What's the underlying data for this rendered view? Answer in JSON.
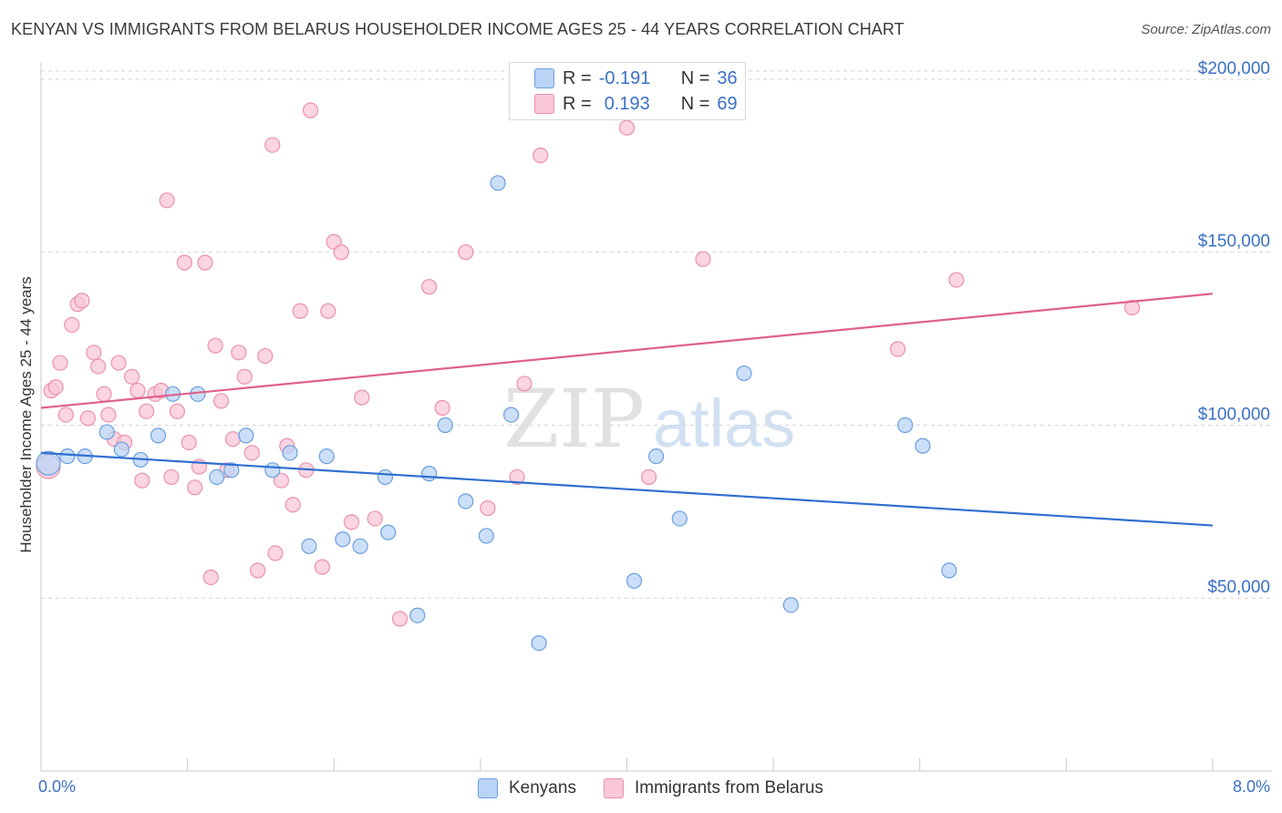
{
  "title": "KENYAN VS IMMIGRANTS FROM BELARUS HOUSEHOLDER INCOME AGES 25 - 44 YEARS CORRELATION CHART",
  "source": "Source: ZipAtlas.com",
  "watermark": {
    "zip": "ZIP",
    "atlas": "atlas"
  },
  "colors": {
    "blue_fill": "#b9d4f5",
    "blue_stroke": "#6a9ee0",
    "blue_line": "#2f6fd0",
    "pink_fill": "#f9c7d7",
    "pink_stroke": "#ec8fae",
    "pink_line": "#e0608e",
    "axis_text": "#3b70c6",
    "grid": "#d4d4d4"
  },
  "legend_top": [
    {
      "r_label": "R =",
      "r_value": "-0.191",
      "n_label": "N =",
      "n_value": "36"
    },
    {
      "r_label": "R =",
      "r_value": "0.193",
      "n_label": "N =",
      "n_value": "69"
    }
  ],
  "legend_bottom": [
    {
      "label": "Kenyans"
    },
    {
      "label": "Immigrants from Belarus"
    }
  ],
  "chart_data": {
    "type": "scatter",
    "ylabel": "Householder Income Ages 25 - 44 years",
    "xlim": [
      0,
      8.0
    ],
    "ylim": [
      0,
      205000
    ],
    "x_tick_labels": [
      {
        "value": 0,
        "label": "0.0%"
      },
      {
        "value": 8.0,
        "label": "8.0%"
      }
    ],
    "y_ticks": [
      {
        "value": 50000,
        "label": "$50,000"
      },
      {
        "value": 100000,
        "label": "$100,000"
      },
      {
        "value": 150000,
        "label": "$150,000"
      },
      {
        "value": 200000,
        "label": "$200,000"
      }
    ],
    "grid": true,
    "legend_position": "top-center",
    "series": [
      {
        "name": "Kenyans",
        "trend": [
          [
            0,
            92000
          ],
          [
            8.0,
            71000
          ]
        ],
        "points": [
          [
            0.05,
            89000
          ],
          [
            0.18,
            91000
          ],
          [
            0.3,
            91000
          ],
          [
            0.45,
            98000
          ],
          [
            0.55,
            93000
          ],
          [
            0.68,
            90000
          ],
          [
            0.8,
            97000
          ],
          [
            0.9,
            109000
          ],
          [
            1.07,
            109000
          ],
          [
            1.2,
            85000
          ],
          [
            1.3,
            87000
          ],
          [
            1.4,
            97000
          ],
          [
            1.58,
            87000
          ],
          [
            1.7,
            92000
          ],
          [
            1.83,
            65000
          ],
          [
            1.95,
            91000
          ],
          [
            2.06,
            67000
          ],
          [
            2.18,
            65000
          ],
          [
            2.35,
            85000
          ],
          [
            2.37,
            69000
          ],
          [
            2.57,
            45000
          ],
          [
            2.65,
            86000
          ],
          [
            2.76,
            100000
          ],
          [
            2.9,
            78000
          ],
          [
            3.04,
            68000
          ],
          [
            3.12,
            170000
          ],
          [
            3.21,
            103000
          ],
          [
            3.4,
            37000
          ],
          [
            4.05,
            55000
          ],
          [
            4.2,
            91000
          ],
          [
            4.36,
            73000
          ],
          [
            4.8,
            115000
          ],
          [
            5.12,
            48000
          ],
          [
            5.9,
            100000
          ],
          [
            6.02,
            94000
          ],
          [
            6.2,
            58000
          ]
        ]
      },
      {
        "name": "Immigrants from Belarus",
        "trend": [
          [
            0,
            105000
          ],
          [
            8.0,
            138000
          ]
        ],
        "points": [
          [
            0.05,
            88000
          ],
          [
            0.07,
            110000
          ],
          [
            0.1,
            111000
          ],
          [
            0.13,
            118000
          ],
          [
            0.17,
            103000
          ],
          [
            0.21,
            129000
          ],
          [
            0.25,
            135000
          ],
          [
            0.28,
            136000
          ],
          [
            0.32,
            102000
          ],
          [
            0.36,
            121000
          ],
          [
            0.39,
            117000
          ],
          [
            0.43,
            109000
          ],
          [
            0.46,
            103000
          ],
          [
            0.5,
            96000
          ],
          [
            0.53,
            118000
          ],
          [
            0.57,
            95000
          ],
          [
            0.62,
            114000
          ],
          [
            0.66,
            110000
          ],
          [
            0.69,
            84000
          ],
          [
            0.72,
            104000
          ],
          [
            0.78,
            109000
          ],
          [
            0.82,
            110000
          ],
          [
            0.86,
            165000
          ],
          [
            0.89,
            85000
          ],
          [
            0.93,
            104000
          ],
          [
            0.98,
            147000
          ],
          [
            1.01,
            95000
          ],
          [
            1.05,
            82000
          ],
          [
            1.08,
            88000
          ],
          [
            1.12,
            147000
          ],
          [
            1.16,
            56000
          ],
          [
            1.19,
            123000
          ],
          [
            1.23,
            107000
          ],
          [
            1.27,
            87000
          ],
          [
            1.31,
            96000
          ],
          [
            1.35,
            121000
          ],
          [
            1.39,
            114000
          ],
          [
            1.44,
            92000
          ],
          [
            1.48,
            58000
          ],
          [
            1.53,
            120000
          ],
          [
            1.58,
            181000
          ],
          [
            1.6,
            63000
          ],
          [
            1.64,
            84000
          ],
          [
            1.68,
            94000
          ],
          [
            1.72,
            77000
          ],
          [
            1.77,
            133000
          ],
          [
            1.81,
            87000
          ],
          [
            1.84,
            191000
          ],
          [
            1.92,
            59000
          ],
          [
            1.96,
            133000
          ],
          [
            2.0,
            153000
          ],
          [
            2.05,
            150000
          ],
          [
            2.12,
            72000
          ],
          [
            2.19,
            108000
          ],
          [
            2.28,
            73000
          ],
          [
            2.45,
            44000
          ],
          [
            2.65,
            140000
          ],
          [
            2.74,
            105000
          ],
          [
            2.9,
            150000
          ],
          [
            3.05,
            76000
          ],
          [
            3.25,
            85000
          ],
          [
            3.3,
            112000
          ],
          [
            3.41,
            178000
          ],
          [
            4.0,
            186000
          ],
          [
            4.15,
            85000
          ],
          [
            4.52,
            148000
          ],
          [
            5.85,
            122000
          ],
          [
            6.25,
            142000
          ],
          [
            7.45,
            134000
          ]
        ]
      }
    ]
  }
}
